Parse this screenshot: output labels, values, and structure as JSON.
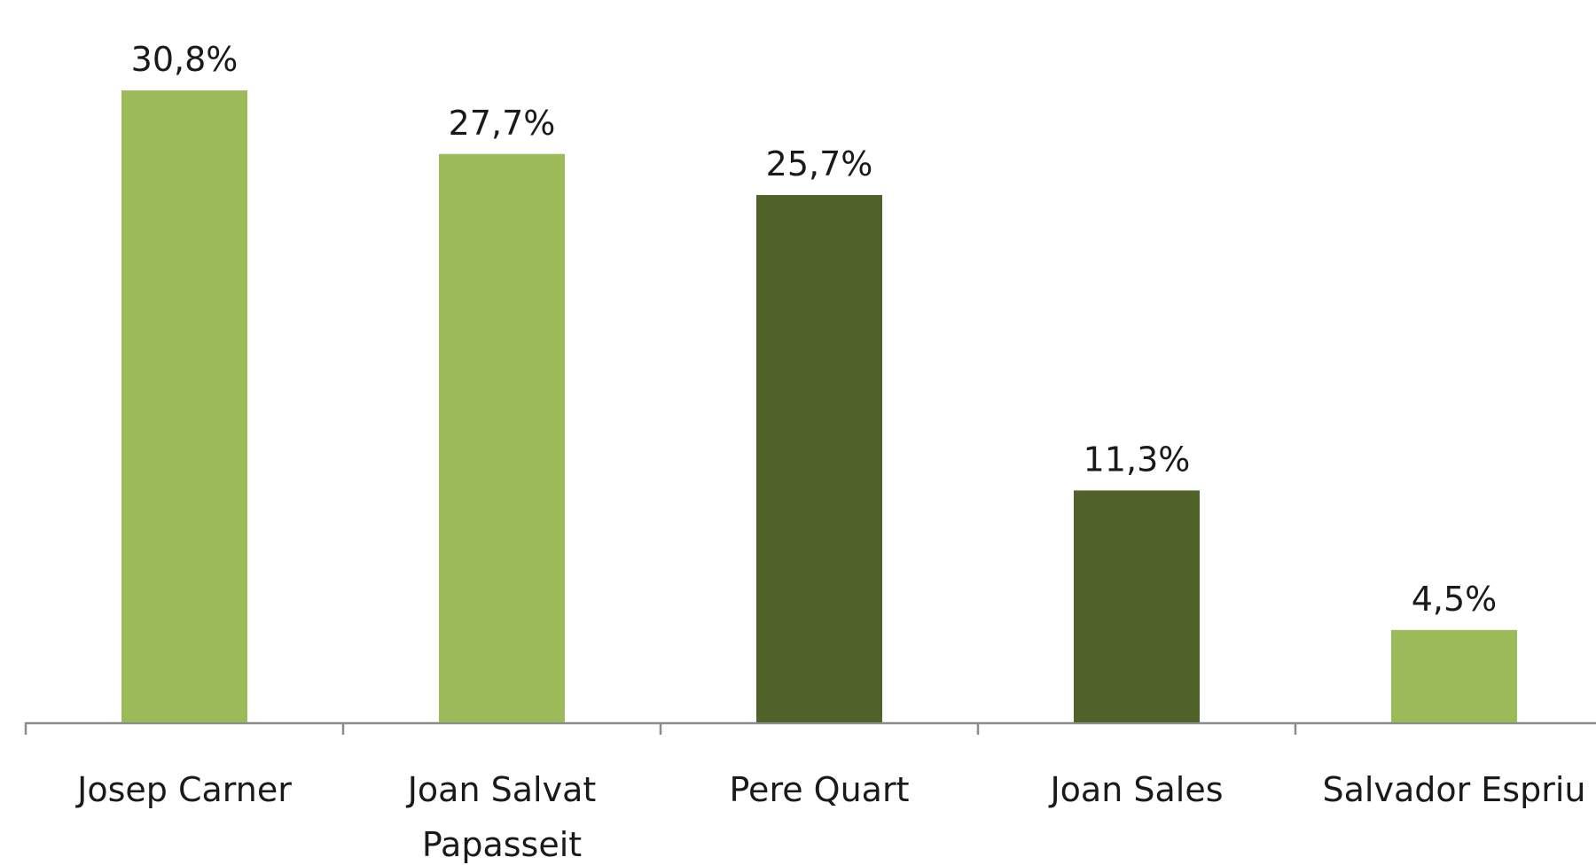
{
  "chart_data": {
    "type": "bar",
    "categories": [
      "Josep Carner",
      "Joan Salvat Papasseit",
      "Pere Quart",
      "Joan Sales",
      "Salvador Espriu"
    ],
    "values": [
      30.8,
      27.7,
      25.7,
      11.3,
      4.5
    ],
    "value_labels": [
      "30,8%",
      "27,7%",
      "25,7%",
      "11,3%",
      "4,5%"
    ],
    "colors": [
      "#9bbb59",
      "#9bbb59",
      "#4f6228",
      "#4f6228",
      "#9bbb59"
    ]
  }
}
